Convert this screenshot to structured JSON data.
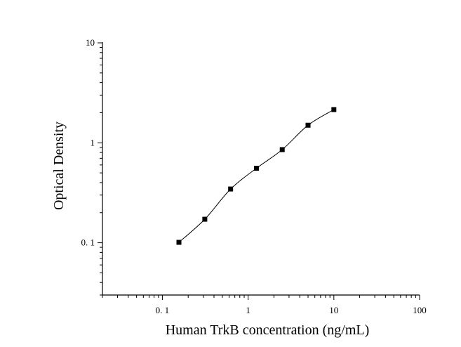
{
  "chart_data": {
    "type": "scatter",
    "xlabel": "Human TrkB concentration (ng/mL)",
    "ylabel": "Optical Density",
    "x_scale": "log",
    "y_scale": "log",
    "xlim": [
      0.02,
      100
    ],
    "ylim": [
      0.03,
      10
    ],
    "x_ticks": [
      {
        "value": 0.1,
        "label": "0. 1"
      },
      {
        "value": 1,
        "label": "1"
      },
      {
        "value": 10,
        "label": "10"
      },
      {
        "value": 100,
        "label": "100"
      }
    ],
    "y_ticks": [
      {
        "value": 0.1,
        "label": "0. 1"
      },
      {
        "value": 1,
        "label": "1"
      },
      {
        "value": 10,
        "label": "10"
      }
    ],
    "grid": false,
    "marker": "square",
    "fit_line": true,
    "series": [
      {
        "x": [
          0.156,
          0.3125,
          0.625,
          1.25,
          2.5,
          5,
          10
        ],
        "y": [
          0.101,
          0.172,
          0.345,
          0.556,
          0.855,
          1.5,
          2.15
        ]
      }
    ],
    "colors": {
      "marker": "#000000",
      "line": "#000000",
      "axis": "#000000"
    }
  }
}
